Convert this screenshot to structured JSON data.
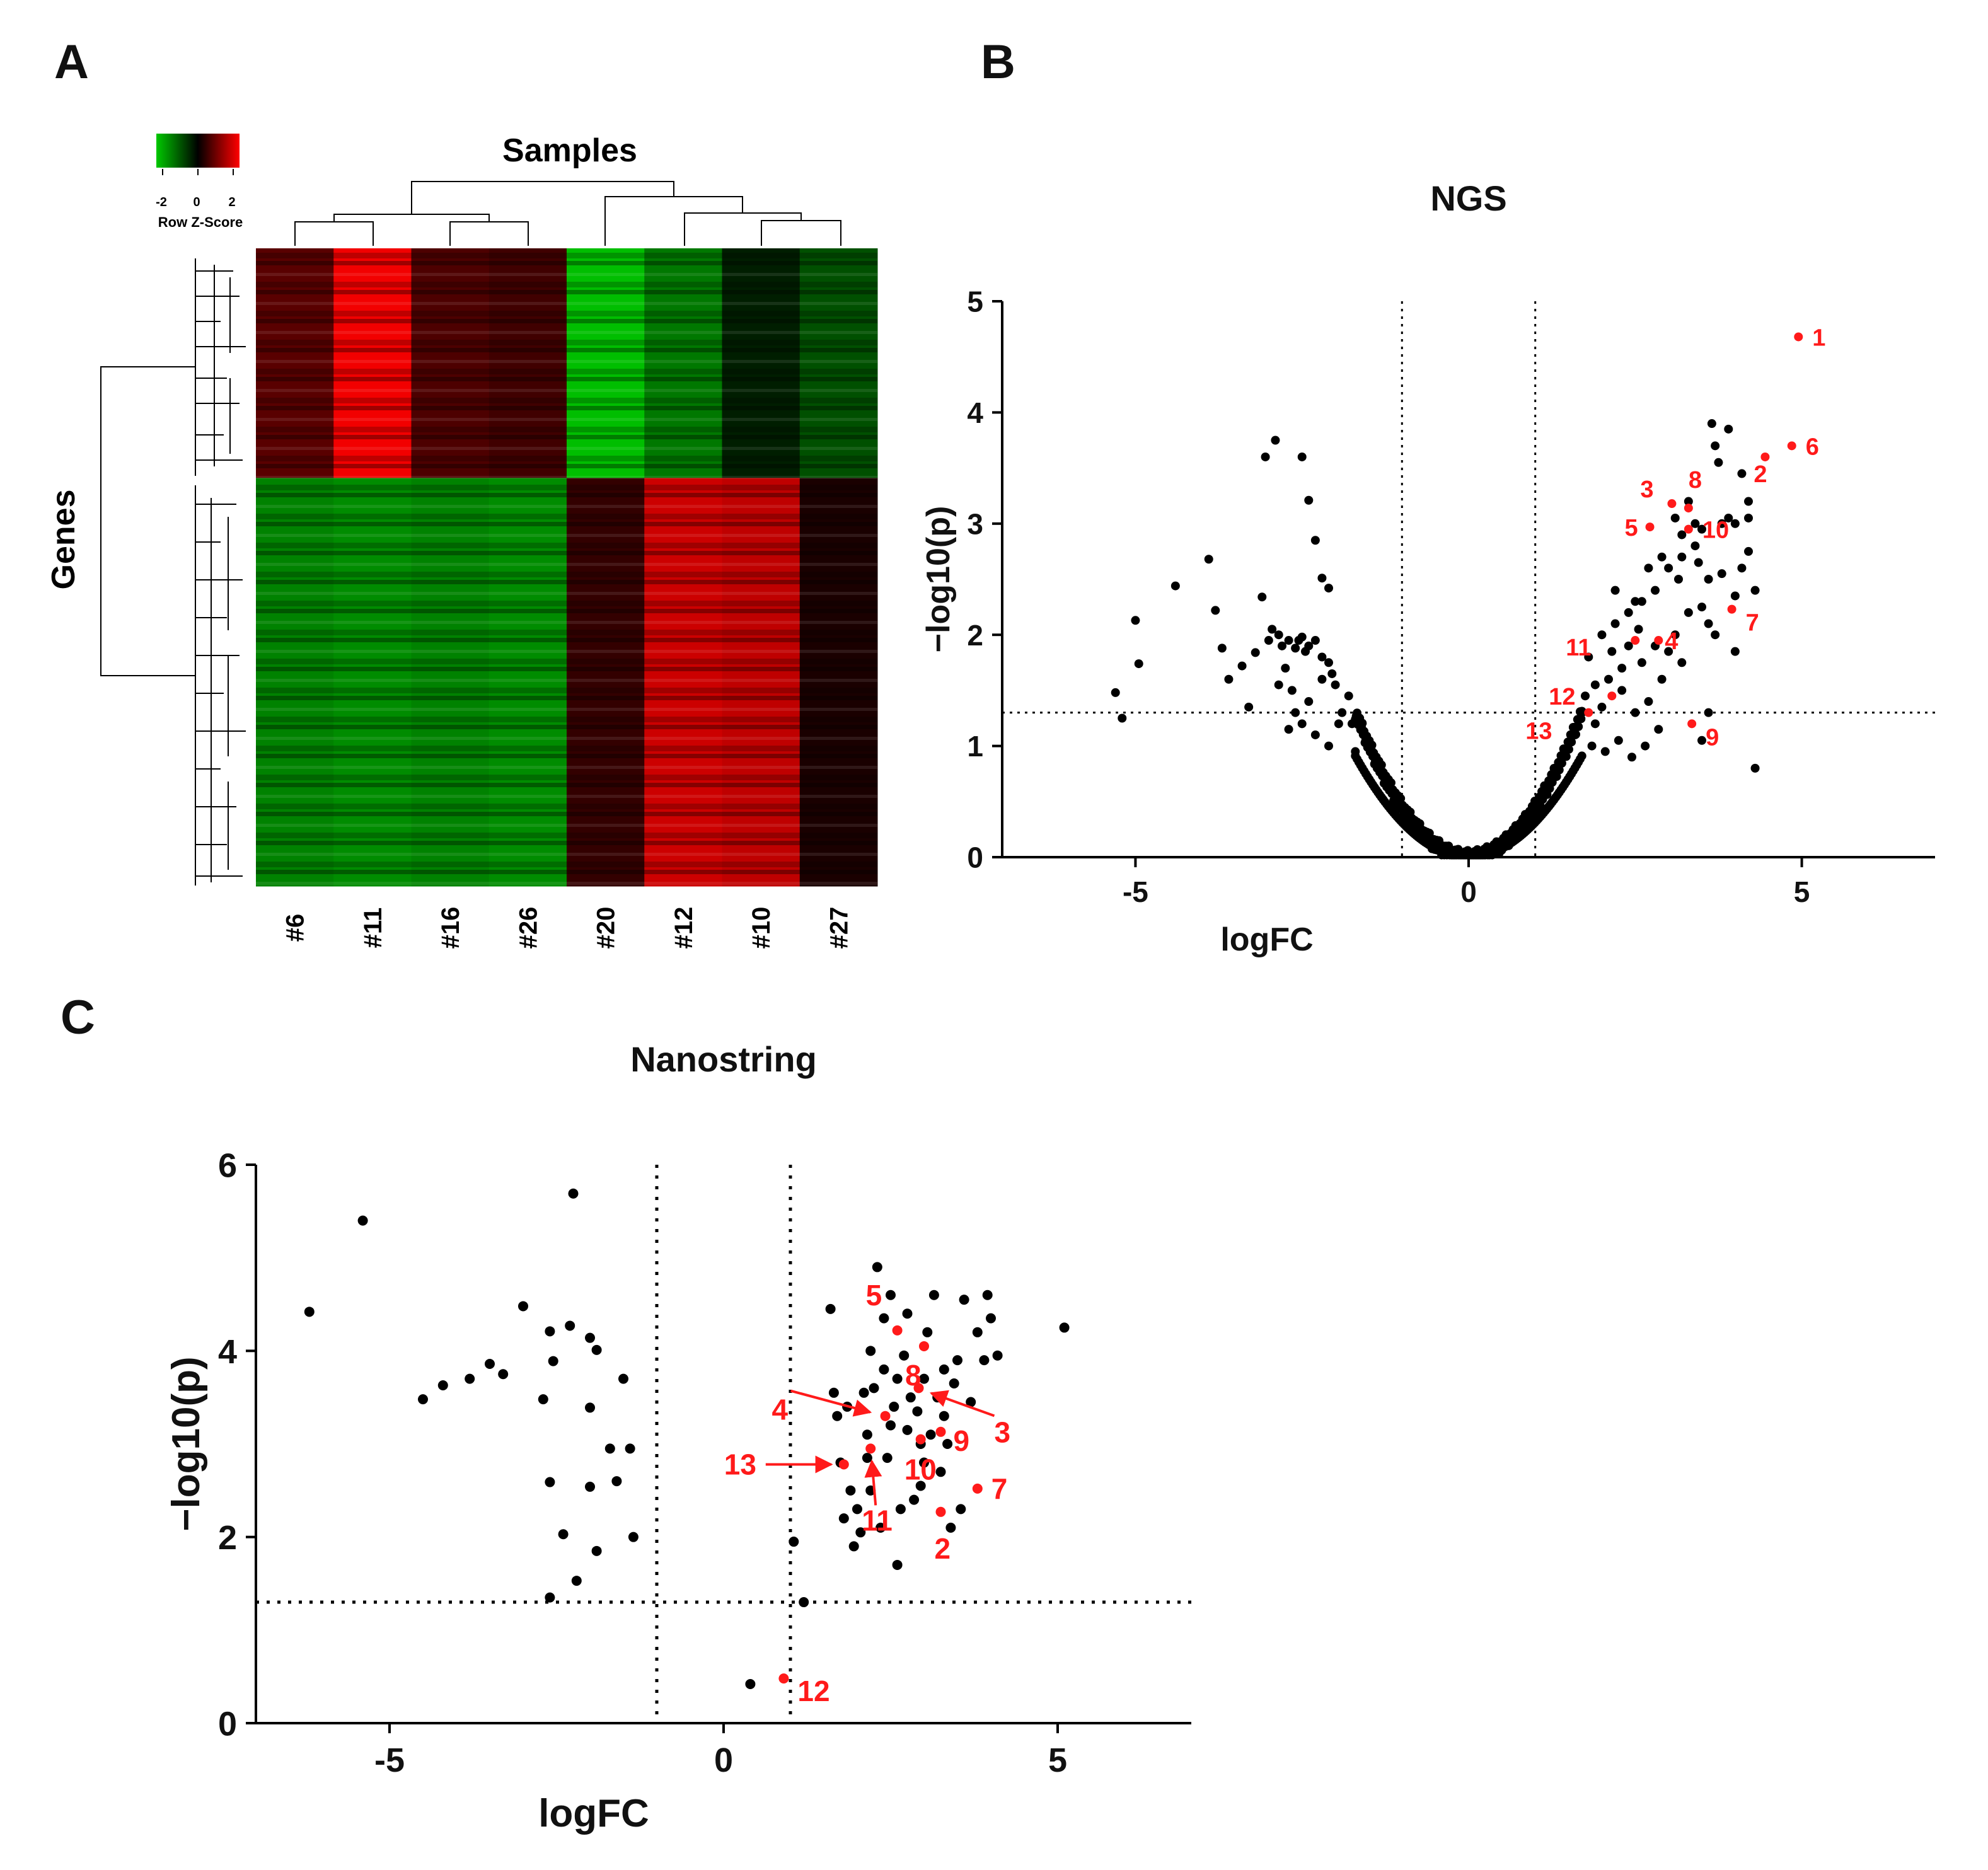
{
  "panels": {
    "A": {
      "label": "A",
      "title": "Samples",
      "y_label": "Genes",
      "colorkey": {
        "title": "Row Z-Score",
        "ticks": [
          "-2",
          "0",
          "2"
        ],
        "colors": {
          "low": "#00c800",
          "mid": "#000000",
          "high": "#ff0000"
        }
      }
    },
    "B": {
      "label": "B"
    },
    "C": {
      "label": "C"
    }
  },
  "chart_data": [
    {
      "id": "heatmap",
      "type": "heatmap",
      "title": "Samples",
      "ylabel": "Genes",
      "columns": [
        "#6",
        "#11",
        "#16",
        "#26",
        "#20",
        "#12",
        "#10",
        "#27"
      ],
      "row_clusters": [
        {
          "name": "cluster-1",
          "fraction": 0.36,
          "column_values": [
            0.7,
            1.9,
            0.6,
            0.5,
            -1.9,
            -1.2,
            -0.3,
            -0.8
          ]
        },
        {
          "name": "cluster-2",
          "fraction": 0.64,
          "column_values": [
            -1.3,
            -1.4,
            -1.3,
            -1.4,
            0.4,
            1.6,
            1.5,
            0.2
          ]
        }
      ],
      "colorscale": {
        "min": -2,
        "max": 2,
        "low": "#00c800",
        "mid": "#000000",
        "high": "#ff0000"
      }
    },
    {
      "id": "volcano-ngs",
      "type": "scatter",
      "title": "NGS",
      "xlabel": "logFC",
      "ylabel": "−log10(p)",
      "xlim": [
        -7,
        7
      ],
      "ylim": [
        0,
        5
      ],
      "xticks": [
        "-5",
        "0",
        "5"
      ],
      "yticks": [
        "0",
        "1",
        "2",
        "3",
        "4",
        "5"
      ],
      "thresholds": {
        "x": [
          -1,
          1
        ],
        "y": 1.3
      },
      "highlight_color": "#ff1a1a",
      "points": [
        [
          -5.3,
          1.48
        ],
        [
          -5.2,
          1.25
        ],
        [
          -5.0,
          2.13
        ],
        [
          -4.95,
          1.74
        ],
        [
          -4.4,
          2.44
        ],
        [
          -3.9,
          2.68
        ],
        [
          -3.8,
          2.22
        ],
        [
          -3.7,
          1.88
        ],
        [
          -3.6,
          1.6
        ],
        [
          -3.4,
          1.72
        ],
        [
          -3.3,
          1.35
        ],
        [
          -3.2,
          1.84
        ],
        [
          -3.1,
          2.34
        ],
        [
          -3.05,
          3.6
        ],
        [
          -2.9,
          3.75
        ],
        [
          -2.5,
          3.6
        ],
        [
          -2.4,
          3.21
        ],
        [
          -2.3,
          2.85
        ],
        [
          -2.2,
          2.51
        ],
        [
          -2.1,
          2.42
        ],
        [
          -3.0,
          1.95
        ],
        [
          -2.95,
          2.05
        ],
        [
          -2.85,
          2.0
        ],
        [
          -2.8,
          1.9
        ],
        [
          -2.7,
          1.95
        ],
        [
          -2.6,
          1.88
        ],
        [
          -2.55,
          1.95
        ],
        [
          -2.5,
          1.98
        ],
        [
          -2.45,
          1.85
        ],
        [
          -2.4,
          1.9
        ],
        [
          -2.3,
          1.95
        ],
        [
          -2.75,
          1.7
        ],
        [
          -2.65,
          1.5
        ],
        [
          -2.6,
          1.3
        ],
        [
          -2.4,
          1.4
        ],
        [
          -2.2,
          1.6
        ],
        [
          -2.1,
          1.75
        ],
        [
          -2.0,
          1.55
        ],
        [
          -1.9,
          1.3
        ],
        [
          -1.8,
          1.45
        ],
        [
          -2.5,
          1.2
        ],
        [
          -2.3,
          1.1
        ],
        [
          -2.7,
          1.15
        ],
        [
          -2.1,
          1.0
        ],
        [
          -1.95,
          1.2
        ],
        [
          -2.85,
          1.55
        ],
        [
          -1.75,
          1.2
        ],
        [
          -1.7,
          0.95
        ],
        [
          -2.2,
          1.8
        ],
        [
          -2.05,
          1.65
        ],
        [
          1.7,
          1.3
        ],
        [
          1.9,
          1.2
        ],
        [
          2.1,
          1.6
        ],
        [
          2.3,
          1.5
        ],
        [
          2.5,
          1.3
        ],
        [
          2.7,
          1.4
        ],
        [
          2.9,
          1.6
        ],
        [
          3.0,
          1.85
        ],
        [
          3.1,
          2.0
        ],
        [
          3.2,
          1.75
        ],
        [
          3.3,
          2.2
        ],
        [
          3.5,
          2.25
        ],
        [
          3.6,
          2.1
        ],
        [
          3.7,
          2.0
        ],
        [
          2.0,
          2.0
        ],
        [
          2.2,
          2.1
        ],
        [
          2.4,
          2.2
        ],
        [
          2.6,
          2.3
        ],
        [
          2.8,
          2.4
        ],
        [
          3.0,
          2.6
        ],
        [
          3.2,
          2.7
        ],
        [
          3.4,
          2.8
        ],
        [
          3.6,
          2.5
        ],
        [
          3.8,
          2.55
        ],
        [
          4.0,
          2.35
        ],
        [
          4.1,
          2.6
        ],
        [
          4.2,
          2.75
        ],
        [
          4.3,
          2.4
        ],
        [
          4.2,
          3.05
        ],
        [
          4.2,
          3.2
        ],
        [
          3.9,
          3.05
        ],
        [
          3.8,
          3.0
        ],
        [
          3.7,
          3.7
        ],
        [
          3.75,
          3.55
        ],
        [
          3.9,
          3.85
        ],
        [
          3.65,
          3.9
        ],
        [
          4.1,
          3.45
        ],
        [
          4.0,
          3.0
        ],
        [
          4.0,
          1.85
        ],
        [
          4.3,
          0.8
        ],
        [
          3.5,
          2.95
        ],
        [
          3.3,
          3.2
        ],
        [
          3.4,
          3.0
        ],
        [
          3.1,
          3.05
        ],
        [
          3.2,
          2.9
        ],
        [
          2.5,
          2.3
        ],
        [
          2.7,
          2.6
        ],
        [
          2.2,
          2.4
        ],
        [
          1.8,
          1.8
        ],
        [
          1.9,
          1.55
        ],
        [
          2.0,
          1.35
        ],
        [
          2.3,
          1.7
        ],
        [
          2.9,
          2.7
        ],
        [
          3.6,
          1.3
        ],
        [
          3.5,
          1.05
        ],
        [
          2.8,
          1.9
        ],
        [
          2.6,
          1.75
        ],
        [
          2.4,
          1.9
        ],
        [
          3.15,
          2.5
        ],
        [
          3.45,
          2.65
        ],
        [
          1.85,
          1.0
        ],
        [
          2.05,
          0.95
        ],
        [
          2.25,
          1.05
        ],
        [
          2.45,
          0.9
        ],
        [
          2.65,
          1.0
        ],
        [
          2.85,
          1.15
        ],
        [
          1.6,
          1.1
        ],
        [
          1.75,
          1.45
        ],
        [
          2.15,
          1.85
        ],
        [
          2.55,
          2.05
        ]
      ],
      "labeled_points": [
        {
          "label": "1",
          "x": 4.95,
          "y": 4.68
        },
        {
          "label": "6",
          "x": 4.85,
          "y": 3.7
        },
        {
          "label": "2",
          "x": 4.45,
          "y": 3.6
        },
        {
          "label": "3",
          "x": 3.05,
          "y": 3.18
        },
        {
          "label": "8",
          "x": 3.3,
          "y": 3.14
        },
        {
          "label": "5",
          "x": 2.72,
          "y": 2.97
        },
        {
          "label": "10",
          "x": 3.3,
          "y": 2.95
        },
        {
          "label": "7",
          "x": 3.95,
          "y": 2.23
        },
        {
          "label": "11",
          "x": 2.5,
          "y": 1.95
        },
        {
          "label": "4",
          "x": 2.85,
          "y": 1.95
        },
        {
          "label": "12",
          "x": 2.15,
          "y": 1.45
        },
        {
          "label": "13",
          "x": 1.8,
          "y": 1.3
        },
        {
          "label": "9",
          "x": 3.35,
          "y": 1.2
        }
      ]
    },
    {
      "id": "volcano-nanostring",
      "type": "scatter",
      "title": "Nanostring",
      "xlabel": "logFC",
      "ylabel": "−log10(p)",
      "xlim": [
        -7,
        7
      ],
      "ylim": [
        0,
        6
      ],
      "xticks": [
        "-5",
        "0",
        "5"
      ],
      "yticks": [
        "0",
        "2",
        "4",
        "6"
      ],
      "thresholds": {
        "x": [
          -1,
          1
        ],
        "y": 1.3
      },
      "highlight_color": "#ff1a1a",
      "points": [
        [
          -6.2,
          4.42
        ],
        [
          -5.4,
          5.4
        ],
        [
          -4.5,
          3.48
        ],
        [
          -4.2,
          3.63
        ],
        [
          -3.8,
          3.7
        ],
        [
          -3.5,
          3.86
        ],
        [
          -3.3,
          3.75
        ],
        [
          -3.0,
          4.48
        ],
        [
          -2.7,
          3.48
        ],
        [
          -2.6,
          2.59
        ],
        [
          -2.6,
          1.35
        ],
        [
          -2.6,
          4.21
        ],
        [
          -2.55,
          3.89
        ],
        [
          -2.4,
          2.03
        ],
        [
          -2.3,
          4.27
        ],
        [
          -2.25,
          5.69
        ],
        [
          -2.2,
          1.53
        ],
        [
          -2.0,
          4.14
        ],
        [
          -2.0,
          3.39
        ],
        [
          -2.0,
          2.54
        ],
        [
          -1.9,
          1.85
        ],
        [
          -1.9,
          4.01
        ],
        [
          -1.7,
          2.95
        ],
        [
          -1.6,
          2.6
        ],
        [
          -1.5,
          3.7
        ],
        [
          -1.4,
          2.95
        ],
        [
          -1.35,
          2.0
        ],
        [
          1.05,
          1.95
        ],
        [
          1.2,
          1.3
        ],
        [
          0.4,
          0.42
        ],
        [
          1.6,
          4.45
        ],
        [
          1.65,
          3.55
        ],
        [
          1.7,
          3.3
        ],
        [
          1.75,
          2.8
        ],
        [
          1.8,
          2.2
        ],
        [
          1.9,
          2.5
        ],
        [
          1.95,
          1.9
        ],
        [
          2.0,
          2.3
        ],
        [
          2.05,
          2.05
        ],
        [
          2.1,
          3.55
        ],
        [
          2.15,
          3.1
        ],
        [
          2.2,
          4.0
        ],
        [
          2.25,
          3.6
        ],
        [
          2.35,
          2.1
        ],
        [
          2.4,
          3.8
        ],
        [
          2.45,
          2.85
        ],
        [
          2.5,
          3.2
        ],
        [
          2.55,
          3.4
        ],
        [
          2.6,
          1.7
        ],
        [
          2.7,
          3.95
        ],
        [
          2.75,
          4.4
        ],
        [
          2.8,
          3.5
        ],
        [
          2.85,
          2.4
        ],
        [
          2.9,
          3.35
        ],
        [
          2.95,
          3.0
        ],
        [
          3.0,
          3.7
        ],
        [
          3.05,
          4.2
        ],
        [
          3.1,
          3.1
        ],
        [
          3.15,
          4.6
        ],
        [
          3.2,
          3.5
        ],
        [
          3.25,
          2.7
        ],
        [
          3.3,
          3.3
        ],
        [
          3.35,
          3.0
        ],
        [
          3.4,
          2.1
        ],
        [
          3.5,
          3.9
        ],
        [
          3.6,
          4.55
        ],
        [
          3.55,
          2.3
        ],
        [
          3.7,
          3.45
        ],
        [
          3.8,
          4.2
        ],
        [
          3.9,
          3.9
        ],
        [
          3.95,
          4.6
        ],
        [
          4.0,
          4.35
        ],
        [
          4.1,
          3.95
        ],
        [
          5.1,
          4.25
        ],
        [
          2.3,
          4.9
        ],
        [
          2.2,
          2.5
        ],
        [
          2.6,
          3.7
        ],
        [
          3.0,
          2.8
        ],
        [
          2.5,
          4.6
        ],
        [
          2.4,
          4.35
        ],
        [
          3.3,
          3.8
        ],
        [
          2.75,
          3.15
        ],
        [
          2.95,
          2.55
        ],
        [
          3.45,
          3.65
        ],
        [
          1.85,
          3.4
        ],
        [
          2.15,
          2.85
        ],
        [
          2.65,
          2.3
        ]
      ],
      "labeled_points": [
        {
          "label": "5",
          "x": 2.6,
          "y": 4.22
        },
        {
          "label": "8",
          "x": 3.0,
          "y": 4.05
        },
        {
          "label": "4",
          "x": 2.42,
          "y": 3.3
        },
        {
          "label": "3",
          "x": 2.92,
          "y": 3.6
        },
        {
          "label": "9",
          "x": 3.25,
          "y": 3.13
        },
        {
          "label": "10",
          "x": 2.95,
          "y": 3.05
        },
        {
          "label": "13",
          "x": 1.8,
          "y": 2.78
        },
        {
          "label": "11",
          "x": 2.2,
          "y": 2.95
        },
        {
          "label": "7",
          "x": 3.8,
          "y": 2.52
        },
        {
          "label": "2",
          "x": 3.25,
          "y": 2.27
        },
        {
          "label": "12",
          "x": 0.9,
          "y": 0.48
        }
      ]
    }
  ]
}
